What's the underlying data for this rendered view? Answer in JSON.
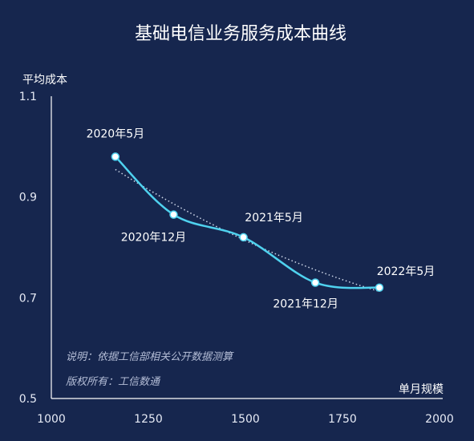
{
  "chart_data": {
    "type": "line",
    "title": "基础电信业务服务成本曲线",
    "xlabel": "单月规模",
    "ylabel": "平均成本",
    "xlim": [
      1000,
      2000
    ],
    "ylim": [
      0.5,
      1.1
    ],
    "xticks": [
      "1000",
      "1250",
      "1500",
      "1750",
      "2000"
    ],
    "yticks": [
      "0.5",
      "0.7",
      "0.9",
      "1.1"
    ],
    "points": [
      {
        "x": 1165,
        "y": 0.98,
        "label": "2020年5月"
      },
      {
        "x": 1315,
        "y": 0.865,
        "label": "2020年12月"
      },
      {
        "x": 1495,
        "y": 0.82,
        "label": "2021年5月"
      },
      {
        "x": 1680,
        "y": 0.73,
        "label": "2021年12月"
      },
      {
        "x": 1845,
        "y": 0.72,
        "label": "2022年5月"
      }
    ],
    "trendline": true,
    "notes": [
      "说明：依据工信部相关公开数据测算",
      "版权所有：工信数通"
    ],
    "colors": {
      "line": "#4fd2ef",
      "trend": "#cfd8ea",
      "background": "#16264e",
      "axis": "#ffffff"
    }
  }
}
